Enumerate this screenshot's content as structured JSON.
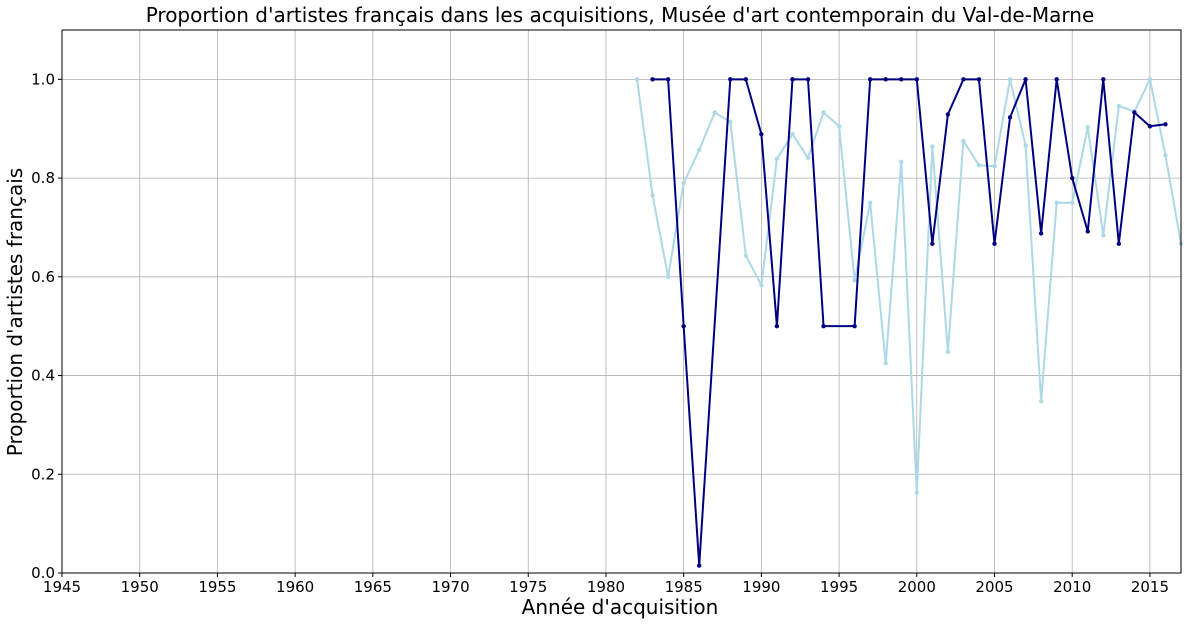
{
  "chart_data": {
    "type": "line",
    "title": "Proportion d'artistes français dans les acquisitions, Musée d'art contemporain du Val-de-Marne",
    "xlabel": "Année d'acquisition",
    "ylabel": "Proportion d'artistes français",
    "xlim": [
      1945,
      2017
    ],
    "ylim": [
      0,
      1.1
    ],
    "grid": true,
    "x_ticks": [
      1945,
      1950,
      1955,
      1960,
      1965,
      1970,
      1975,
      1980,
      1985,
      1990,
      1995,
      2000,
      2005,
      2010,
      2015
    ],
    "y_ticks": [
      0.0,
      0.2,
      0.4,
      0.6,
      0.8,
      1.0
    ],
    "x_tick_labels": [
      "1945",
      "1950",
      "1955",
      "1960",
      "1965",
      "1970",
      "1975",
      "1980",
      "1985",
      "1990",
      "1995",
      "2000",
      "2005",
      "2010",
      "2015"
    ],
    "y_tick_labels": [
      "0.0",
      "0.2",
      "0.4",
      "0.6",
      "0.8",
      "1.0"
    ],
    "series": [
      {
        "color": "#add8e6",
        "points": [
          [
            1982,
            1.0
          ],
          [
            1983,
            0.765
          ],
          [
            1984,
            0.6
          ],
          [
            1985,
            0.79
          ],
          [
            1986,
            0.857
          ],
          [
            1987,
            0.933
          ],
          [
            1988,
            0.914
          ],
          [
            1989,
            0.643
          ],
          [
            1990,
            0.583
          ],
          [
            1991,
            0.839
          ],
          [
            1992,
            0.889
          ],
          [
            1993,
            0.841
          ],
          [
            1994,
            0.933
          ],
          [
            1995,
            0.905
          ],
          [
            1996,
            0.593
          ],
          [
            1997,
            0.75
          ],
          [
            1998,
            0.425
          ],
          [
            1999,
            0.833
          ],
          [
            2000,
            0.163
          ],
          [
            2001,
            0.864
          ],
          [
            2002,
            0.448
          ],
          [
            2003,
            0.875
          ],
          [
            2004,
            0.826
          ],
          [
            2005,
            0.824
          ],
          [
            2006,
            1.0
          ],
          [
            2007,
            0.866
          ],
          [
            2008,
            0.348
          ],
          [
            2009,
            0.75
          ],
          [
            2010,
            0.75
          ],
          [
            2011,
            0.903
          ],
          [
            2012,
            0.684
          ],
          [
            2013,
            0.946
          ],
          [
            2014,
            0.935
          ],
          [
            2015,
            1.0
          ],
          [
            2016,
            0.846
          ],
          [
            2017,
            0.667
          ]
        ]
      },
      {
        "color": "#00007f",
        "points": [
          [
            1983,
            1.0
          ],
          [
            1984,
            1.0
          ],
          [
            1985,
            0.5
          ],
          [
            1986,
            0.015
          ],
          [
            1988,
            1.0
          ],
          [
            1989,
            1.0
          ],
          [
            1990,
            0.889
          ],
          [
            1991,
            0.5
          ],
          [
            1992,
            1.0
          ],
          [
            1993,
            1.0
          ],
          [
            1994,
            0.5
          ],
          [
            1996,
            0.5
          ],
          [
            1997,
            1.0
          ],
          [
            1998,
            1.0
          ],
          [
            1999,
            1.0
          ],
          [
            2000,
            1.0
          ],
          [
            2001,
            0.667
          ],
          [
            2002,
            0.929
          ],
          [
            2003,
            1.0
          ],
          [
            2004,
            1.0
          ],
          [
            2005,
            0.667
          ],
          [
            2006,
            0.923
          ],
          [
            2007,
            1.0
          ],
          [
            2008,
            0.688
          ],
          [
            2009,
            1.0
          ],
          [
            2010,
            0.8
          ],
          [
            2011,
            0.692
          ],
          [
            2012,
            1.0
          ],
          [
            2013,
            0.667
          ],
          [
            2014,
            0.933
          ],
          [
            2015,
            0.905
          ],
          [
            2016,
            0.909
          ]
        ]
      }
    ]
  }
}
